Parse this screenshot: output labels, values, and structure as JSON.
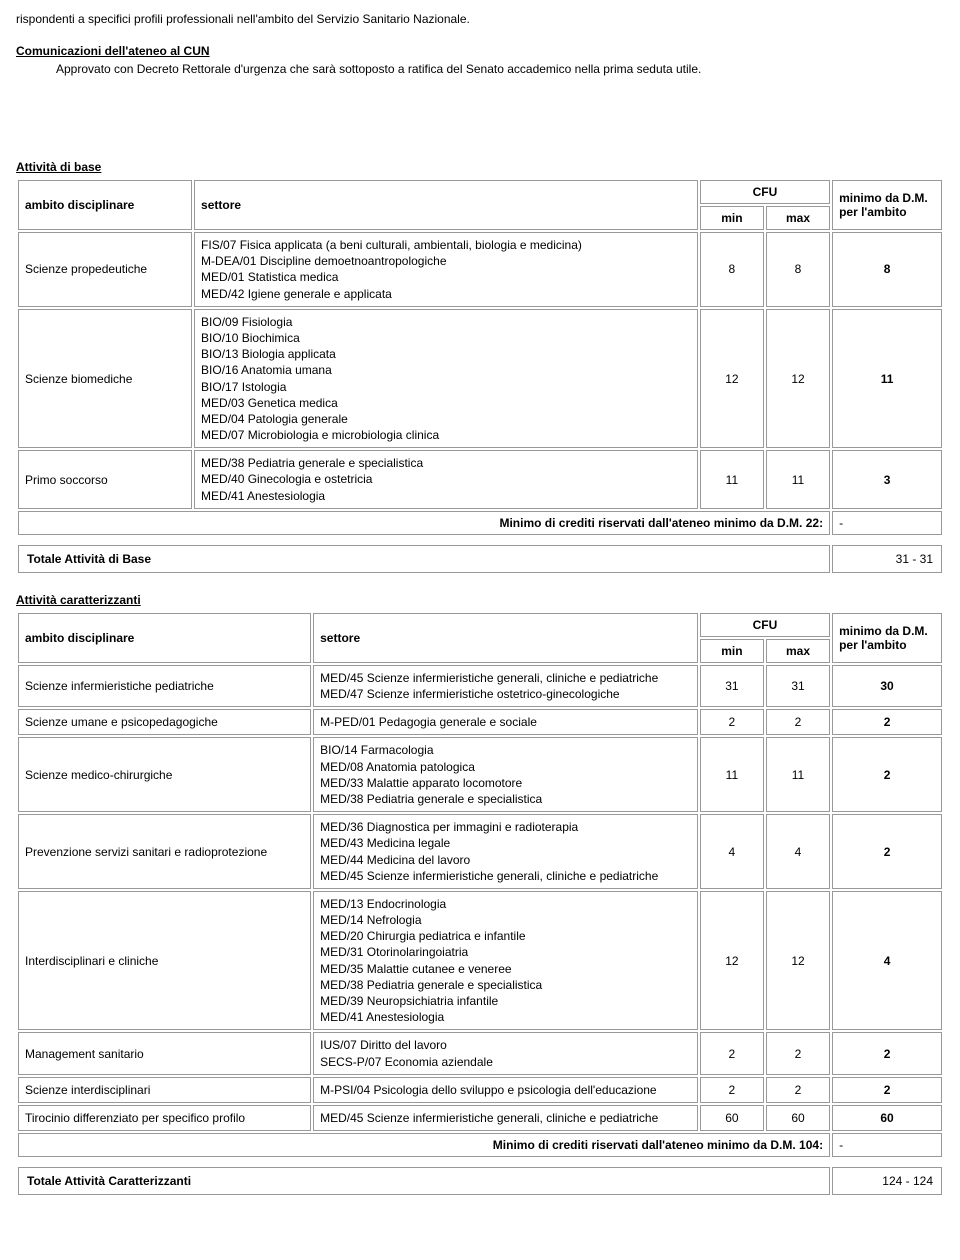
{
  "intro": "rispondenti a specifici profili professionali nell'ambito del Servizio Sanitario Nazionale.",
  "communications_heading": "Comunicazioni dell'ateneo al CUN",
  "communications_body": "Approvato con Decreto Rettorale d'urgenza che sarà sottoposto a ratifica del Senato accademico nella prima seduta utile.",
  "base_heading": "Attività di base",
  "car_heading": "Attività caratterizzanti",
  "headers": {
    "ambito": "ambito disciplinare",
    "settore": "settore",
    "cfu": "CFU",
    "min": "min",
    "max": "max",
    "minimo": "minimo da D.M. per l'ambito"
  },
  "base": {
    "rows": [
      {
        "ambito": "Scienze propedeutiche",
        "settore": "FIS/07 Fisica applicata (a beni culturali, ambientali, biologia e medicina)\nM-DEA/01 Discipline demoetnoantropologiche\nMED/01 Statistica medica\nMED/42 Igiene generale e applicata",
        "min": "8",
        "max": "8",
        "minimo": "8"
      },
      {
        "ambito": "Scienze biomediche",
        "settore": "BIO/09 Fisiologia\nBIO/10 Biochimica\nBIO/13 Biologia applicata\nBIO/16 Anatomia umana\nBIO/17 Istologia\nMED/03 Genetica medica\nMED/04 Patologia generale\nMED/07 Microbiologia e microbiologia clinica",
        "min": "12",
        "max": "12",
        "minimo": "11"
      },
      {
        "ambito": "Primo soccorso",
        "settore": "MED/38 Pediatria generale e specialistica\nMED/40 Ginecologia e ostetricia\nMED/41 Anestesiologia",
        "min": "11",
        "max": "11",
        "minimo": "3"
      }
    ],
    "minimo_label": "Minimo di crediti riservati dall'ateneo minimo da D.M. 22:",
    "minimo_val": "-",
    "totale_label": "Totale Attività di Base",
    "totale_val": "31 - 31"
  },
  "car": {
    "rows": [
      {
        "ambito": "Scienze infermieristiche pediatriche",
        "settore": "MED/45 Scienze infermieristiche generali, cliniche e pediatriche\nMED/47 Scienze infermieristiche ostetrico-ginecologiche",
        "min": "31",
        "max": "31",
        "minimo": "30"
      },
      {
        "ambito": "Scienze umane e psicopedagogiche",
        "settore": "M-PED/01 Pedagogia generale e sociale",
        "min": "2",
        "max": "2",
        "minimo": "2"
      },
      {
        "ambito": "Scienze medico-chirurgiche",
        "settore": "BIO/14 Farmacologia\nMED/08 Anatomia patologica\nMED/33 Malattie apparato locomotore\nMED/38 Pediatria generale e specialistica",
        "min": "11",
        "max": "11",
        "minimo": "2"
      },
      {
        "ambito": "Prevenzione servizi sanitari e radioprotezione",
        "settore": "MED/36 Diagnostica per immagini e radioterapia\nMED/43 Medicina legale\nMED/44 Medicina del lavoro\nMED/45 Scienze infermieristiche generali, cliniche e pediatriche",
        "min": "4",
        "max": "4",
        "minimo": "2"
      },
      {
        "ambito": "Interdisciplinari e cliniche",
        "settore": "MED/13 Endocrinologia\nMED/14 Nefrologia\nMED/20 Chirurgia pediatrica e infantile\nMED/31 Otorinolaringoiatria\nMED/35 Malattie cutanee e veneree\nMED/38 Pediatria generale e specialistica\nMED/39 Neuropsichiatria infantile\nMED/41 Anestesiologia",
        "min": "12",
        "max": "12",
        "minimo": "4"
      },
      {
        "ambito": "Management sanitario",
        "settore": "IUS/07 Diritto del lavoro\nSECS-P/07 Economia aziendale",
        "min": "2",
        "max": "2",
        "minimo": "2"
      },
      {
        "ambito": "Scienze interdisciplinari",
        "settore": "M-PSI/04 Psicologia dello sviluppo e psicologia dell'educazione",
        "min": "2",
        "max": "2",
        "minimo": "2"
      },
      {
        "ambito": "Tirocinio differenziato per specifico profilo",
        "settore": "MED/45 Scienze infermieristiche generali, cliniche e pediatriche",
        "min": "60",
        "max": "60",
        "minimo": "60"
      }
    ],
    "minimo_label": "Minimo di crediti riservati dall'ateneo minimo da D.M. 104:",
    "minimo_val": "-",
    "totale_label": "Totale Attività Caratterizzanti",
    "totale_val": "124 - 124"
  }
}
